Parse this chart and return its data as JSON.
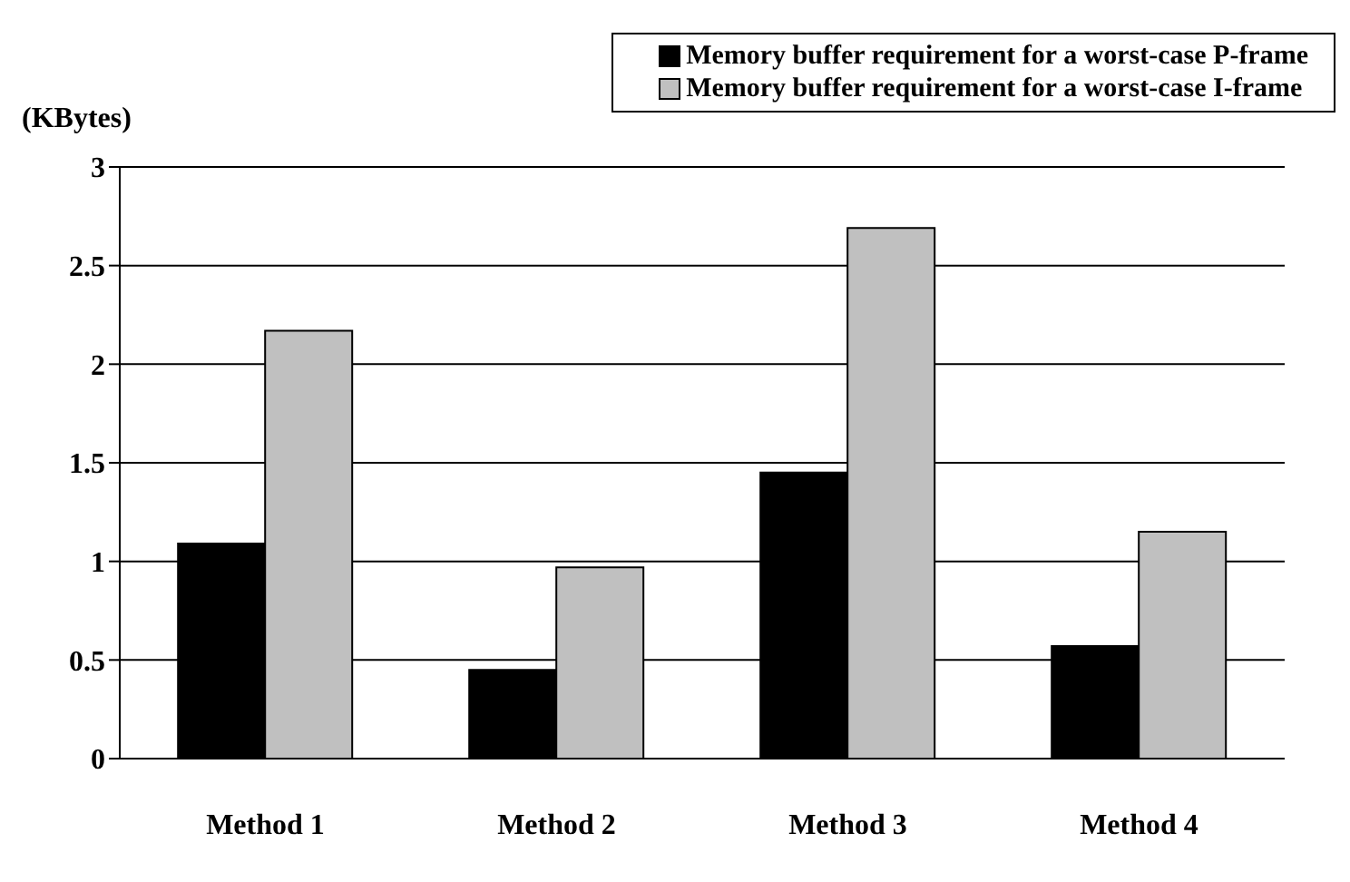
{
  "chart_data": {
    "type": "bar",
    "ylabel": "(KBytes)",
    "categories": [
      "Method 1",
      "Method 2",
      "Method 3",
      "Method 4"
    ],
    "series": [
      {
        "name": "Memory buffer requirement for a worst-case P-frame",
        "color": "#000000",
        "values": [
          1.09,
          0.45,
          1.45,
          0.57
        ]
      },
      {
        "name": "Memory buffer requirement for a worst-case I-frame",
        "color": "#c0c0c0",
        "values": [
          2.17,
          0.97,
          2.69,
          1.15
        ]
      }
    ],
    "ylim": [
      0,
      3
    ],
    "yticks": [
      0,
      0.5,
      1,
      1.5,
      2,
      2.5,
      3
    ],
    "grid": "y",
    "legend": "top right"
  }
}
